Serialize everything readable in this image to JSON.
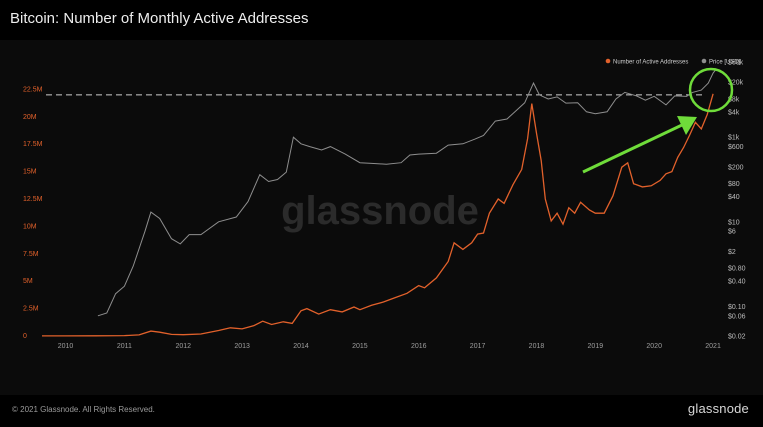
{
  "page": {
    "title": "Bitcoin: Number of Monthly Active Addresses",
    "footer_copyright": "© 2021 Glassnode. All Rights Reserved.",
    "footer_brand": "glassnode",
    "watermark": "glassnode"
  },
  "colors": {
    "background": "#000000",
    "addresses": "#e2612b",
    "price": "#8e8e8e",
    "annotation": "#6fdc3a",
    "reference_line": "#cfcfcf"
  },
  "chart_data": {
    "type": "line",
    "title": "Bitcoin: Number of Monthly Active Addresses",
    "legend_position": "top-right",
    "grid": false,
    "x_tick_labels": [
      "2010",
      "2011",
      "2012",
      "2013",
      "2014",
      "2015",
      "2016",
      "2017",
      "2018",
      "2019",
      "2020",
      "2021"
    ],
    "x_range": [
      2009.6,
      2021.05
    ],
    "y_left": {
      "scale": "linear",
      "range": [
        0,
        25000000
      ],
      "tick_labels": [
        "0",
        "2.5M",
        "5M",
        "7.5M",
        "10M",
        "12.5M",
        "15M",
        "17.5M",
        "20M",
        "22.5M"
      ],
      "tick_values": [
        0,
        2500000,
        5000000,
        7500000,
        10000000,
        12500000,
        15000000,
        17500000,
        20000000,
        22500000
      ]
    },
    "y_right": {
      "scale": "log",
      "range": [
        0.02,
        60000
      ],
      "tick_labels": [
        "$0.02",
        "$0.06",
        "$0.10",
        "$0.40",
        "$0.80",
        "$2",
        "$6",
        "$10",
        "$40",
        "$80",
        "$200",
        "$600",
        "$1k",
        "$4k",
        "$8k",
        "$20k",
        "$60k"
      ],
      "tick_values": [
        0.02,
        0.06,
        0.1,
        0.4,
        0.8,
        2,
        6,
        10,
        40,
        80,
        200,
        600,
        1000,
        4000,
        8000,
        20000,
        60000
      ]
    },
    "series": [
      {
        "name": "Number of Active Addresses",
        "axis": "left",
        "points": [
          [
            2009.6,
            5000
          ],
          [
            2010.0,
            10000
          ],
          [
            2010.5,
            15000
          ],
          [
            2011.0,
            40000
          ],
          [
            2011.25,
            100000
          ],
          [
            2011.45,
            450000
          ],
          [
            2011.6,
            350000
          ],
          [
            2011.8,
            150000
          ],
          [
            2012.0,
            120000
          ],
          [
            2012.3,
            180000
          ],
          [
            2012.6,
            500000
          ],
          [
            2012.8,
            750000
          ],
          [
            2013.0,
            650000
          ],
          [
            2013.2,
            950000
          ],
          [
            2013.35,
            1350000
          ],
          [
            2013.5,
            1050000
          ],
          [
            2013.7,
            1300000
          ],
          [
            2013.85,
            1150000
          ],
          [
            2014.0,
            2300000
          ],
          [
            2014.1,
            2500000
          ],
          [
            2014.3,
            2000000
          ],
          [
            2014.5,
            2400000
          ],
          [
            2014.7,
            2200000
          ],
          [
            2014.9,
            2650000
          ],
          [
            2015.0,
            2400000
          ],
          [
            2015.2,
            2800000
          ],
          [
            2015.4,
            3100000
          ],
          [
            2015.6,
            3500000
          ],
          [
            2015.8,
            3900000
          ],
          [
            2016.0,
            4600000
          ],
          [
            2016.1,
            4400000
          ],
          [
            2016.3,
            5300000
          ],
          [
            2016.5,
            6800000
          ],
          [
            2016.6,
            8500000
          ],
          [
            2016.75,
            7900000
          ],
          [
            2016.9,
            8500000
          ],
          [
            2017.0,
            9300000
          ],
          [
            2017.1,
            9400000
          ],
          [
            2017.2,
            11200000
          ],
          [
            2017.35,
            12500000
          ],
          [
            2017.45,
            12100000
          ],
          [
            2017.6,
            13800000
          ],
          [
            2017.75,
            15200000
          ],
          [
            2017.85,
            18000000
          ],
          [
            2017.92,
            21200000
          ],
          [
            2018.0,
            18500000
          ],
          [
            2018.08,
            16000000
          ],
          [
            2018.15,
            12500000
          ],
          [
            2018.25,
            10500000
          ],
          [
            2018.35,
            11200000
          ],
          [
            2018.45,
            10200000
          ],
          [
            2018.55,
            11700000
          ],
          [
            2018.65,
            11200000
          ],
          [
            2018.75,
            12200000
          ],
          [
            2018.9,
            11500000
          ],
          [
            2019.0,
            11200000
          ],
          [
            2019.15,
            11200000
          ],
          [
            2019.3,
            12800000
          ],
          [
            2019.45,
            15400000
          ],
          [
            2019.55,
            15800000
          ],
          [
            2019.65,
            13900000
          ],
          [
            2019.8,
            13600000
          ],
          [
            2019.95,
            13700000
          ],
          [
            2020.1,
            14200000
          ],
          [
            2020.2,
            14800000
          ],
          [
            2020.3,
            15000000
          ],
          [
            2020.4,
            16300000
          ],
          [
            2020.5,
            17200000
          ],
          [
            2020.6,
            18300000
          ],
          [
            2020.7,
            19500000
          ],
          [
            2020.8,
            18900000
          ],
          [
            2020.9,
            20200000
          ],
          [
            2021.0,
            22100000
          ]
        ]
      },
      {
        "name": "Price [USD]",
        "axis": "right",
        "points": [
          [
            2010.55,
            0.06
          ],
          [
            2010.7,
            0.07
          ],
          [
            2010.85,
            0.2
          ],
          [
            2011.0,
            0.3
          ],
          [
            2011.15,
            0.9
          ],
          [
            2011.35,
            6
          ],
          [
            2011.45,
            17
          ],
          [
            2011.6,
            12
          ],
          [
            2011.8,
            4
          ],
          [
            2011.95,
            3
          ],
          [
            2012.1,
            5
          ],
          [
            2012.3,
            5
          ],
          [
            2012.6,
            10
          ],
          [
            2012.9,
            13
          ],
          [
            2013.1,
            30
          ],
          [
            2013.3,
            130
          ],
          [
            2013.45,
            90
          ],
          [
            2013.6,
            100
          ],
          [
            2013.75,
            150
          ],
          [
            2013.87,
            1000
          ],
          [
            2014.0,
            700
          ],
          [
            2014.15,
            600
          ],
          [
            2014.35,
            500
          ],
          [
            2014.5,
            600
          ],
          [
            2014.75,
            400
          ],
          [
            2015.0,
            250
          ],
          [
            2015.2,
            240
          ],
          [
            2015.45,
            230
          ],
          [
            2015.7,
            250
          ],
          [
            2015.85,
            380
          ],
          [
            2016.0,
            400
          ],
          [
            2016.3,
            420
          ],
          [
            2016.5,
            650
          ],
          [
            2016.75,
            700
          ],
          [
            2016.95,
            900
          ],
          [
            2017.1,
            1100
          ],
          [
            2017.3,
            2400
          ],
          [
            2017.5,
            2700
          ],
          [
            2017.65,
            4200
          ],
          [
            2017.8,
            6500
          ],
          [
            2017.95,
            19000
          ],
          [
            2018.05,
            10000
          ],
          [
            2018.2,
            8000
          ],
          [
            2018.35,
            9000
          ],
          [
            2018.5,
            6400
          ],
          [
            2018.7,
            6500
          ],
          [
            2018.85,
            4000
          ],
          [
            2019.0,
            3600
          ],
          [
            2019.2,
            4000
          ],
          [
            2019.35,
            8000
          ],
          [
            2019.5,
            11500
          ],
          [
            2019.7,
            9500
          ],
          [
            2019.85,
            7500
          ],
          [
            2020.0,
            9300
          ],
          [
            2020.2,
            5800
          ],
          [
            2020.35,
            9500
          ],
          [
            2020.55,
            9200
          ],
          [
            2020.65,
            11500
          ],
          [
            2020.8,
            13000
          ],
          [
            2020.92,
            19000
          ],
          [
            2021.0,
            33000
          ],
          [
            2021.05,
            40000
          ]
        ]
      }
    ],
    "reference_line_value": 22000000
  }
}
